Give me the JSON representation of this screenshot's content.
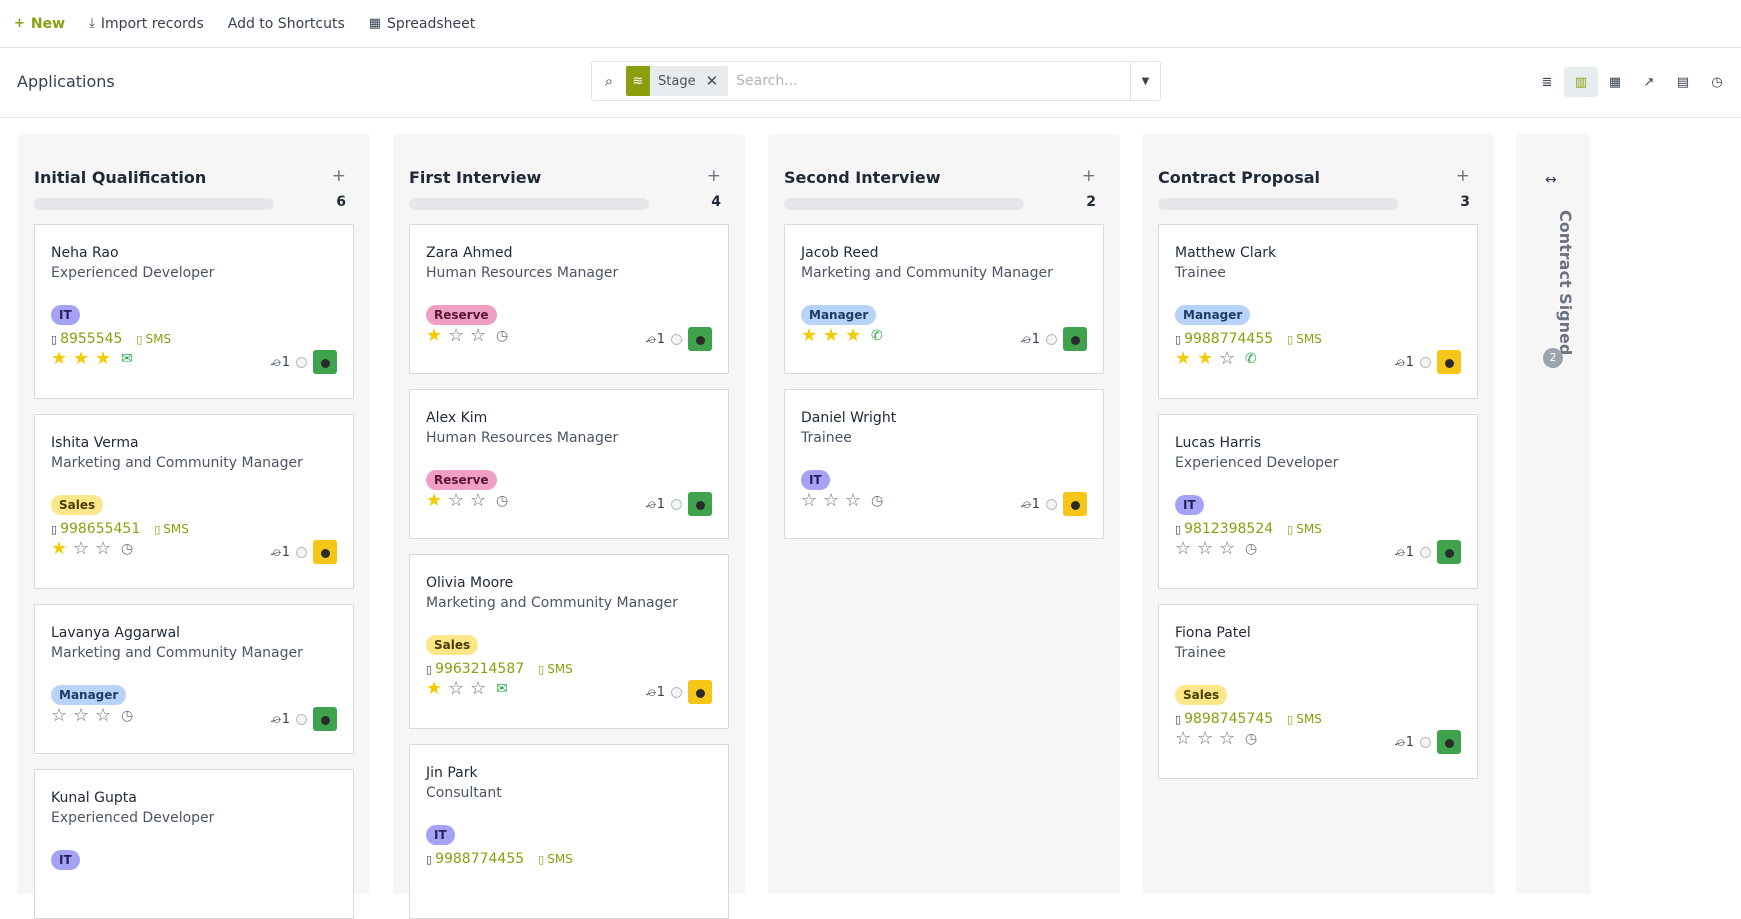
{
  "toolbar": {
    "new_label": "New",
    "import_label": "Import records",
    "shortcuts_label": "Add to Shortcuts",
    "spreadsheet_label": "Spreadsheet"
  },
  "control": {
    "title": "Applications",
    "search": {
      "facet_label": "Stage",
      "placeholder": "Search..."
    },
    "views": [
      "list-icon",
      "kanban-icon",
      "pivot-icon",
      "graph-icon",
      "calendar-icon",
      "activity-icon"
    ],
    "active_view": "kanban-icon"
  },
  "colors": {
    "accent": "#8b9e0e",
    "star_on": "#f3cc00",
    "tag_it": "#a5a1f5",
    "tag_sales": "#fbe78a",
    "tag_manager": "#b7d3f7",
    "tag_reserve": "#ef9fc4"
  },
  "columns": [
    {
      "name": "Initial Qualification",
      "count": "6",
      "cards": [
        {
          "name": "Neha Rao",
          "job": "Experienced Developer",
          "tag": "IT",
          "phone": "8955545",
          "sms": "SMS",
          "stars": 3,
          "activity": "envelope-icon",
          "attach": "1",
          "avatar": "green"
        },
        {
          "name": "Ishita Verma",
          "job": "Marketing and Community Manager",
          "tag": "Sales",
          "phone": "998655451",
          "sms": "SMS",
          "stars": 1,
          "activity": "clock-icon",
          "attach": "1",
          "avatar": "yellow"
        },
        {
          "name": "Lavanya Aggarwal",
          "job": "Marketing and Community Manager",
          "tag": "Manager",
          "phone": "",
          "sms": "",
          "stars": 0,
          "activity": "clock-icon",
          "attach": "1",
          "avatar": "green"
        },
        {
          "name": "Kunal Gupta",
          "job": "Experienced Developer",
          "tag": "IT",
          "phone": "",
          "sms": "",
          "stars": 0,
          "activity": "",
          "attach": "",
          "avatar": ""
        }
      ]
    },
    {
      "name": "First Interview",
      "count": "4",
      "cards": [
        {
          "name": "Zara Ahmed",
          "job": "Human Resources Manager",
          "tag": "Reserve",
          "phone": "",
          "sms": "",
          "stars": 1,
          "activity": "clock-icon",
          "attach": "1",
          "avatar": "green"
        },
        {
          "name": "Alex Kim",
          "job": "Human Resources Manager",
          "tag": "Reserve",
          "phone": "",
          "sms": "",
          "stars": 1,
          "activity": "clock-icon",
          "attach": "1",
          "avatar": "green"
        },
        {
          "name": "Olivia Moore",
          "job": "Marketing and Community Manager",
          "tag": "Sales",
          "phone": "9963214587",
          "sms": "SMS",
          "stars": 1,
          "activity": "envelope-icon",
          "attach": "1",
          "avatar": "yellow"
        },
        {
          "name": "Jin Park",
          "job": "Consultant",
          "tag": "IT",
          "phone": "9988774455",
          "sms": "SMS",
          "stars": 0,
          "activity": "",
          "attach": "",
          "avatar": ""
        }
      ]
    },
    {
      "name": "Second Interview",
      "count": "2",
      "cards": [
        {
          "name": "Jacob Reed",
          "job": "Marketing and Community Manager",
          "tag": "Manager",
          "phone": "",
          "sms": "",
          "stars": 3,
          "activity": "phone-icon",
          "attach": "1",
          "avatar": "green"
        },
        {
          "name": "Daniel Wright",
          "job": "Trainee",
          "tag": "IT",
          "phone": "",
          "sms": "",
          "stars": 0,
          "activity": "clock-icon",
          "attach": "1",
          "avatar": "yellow"
        }
      ]
    },
    {
      "name": "Contract Proposal",
      "count": "3",
      "cards": [
        {
          "name": "Matthew Clark",
          "job": "Trainee",
          "tag": "Manager",
          "phone": "9988774455",
          "sms": "SMS",
          "stars": 2,
          "activity": "phone-icon",
          "attach": "1",
          "avatar": "yellow"
        },
        {
          "name": "Lucas Harris",
          "job": "Experienced Developer",
          "tag": "IT",
          "phone": "9812398524",
          "sms": "SMS",
          "stars": 0,
          "activity": "clock-icon",
          "attach": "1",
          "avatar": "green"
        },
        {
          "name": "Fiona Patel",
          "job": "Trainee",
          "tag": "Sales",
          "phone": "9898745745",
          "sms": "SMS",
          "stars": 0,
          "activity": "clock-icon",
          "attach": "1",
          "avatar": "green"
        }
      ]
    }
  ],
  "folded_column": {
    "name": "Contract Signed",
    "count": "2"
  }
}
